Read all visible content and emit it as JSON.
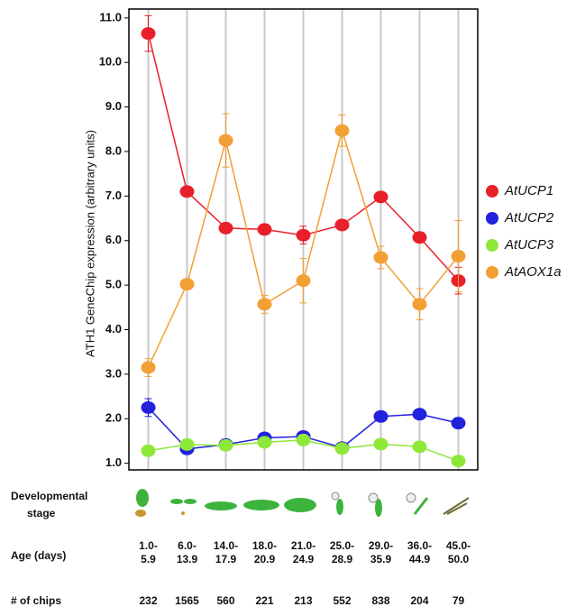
{
  "chart_data": {
    "type": "line",
    "y_label": "ATH1 GeneChip expression (arbitrary units)",
    "categories": [
      [
        "1.0-",
        "5.9"
      ],
      [
        "6.0-",
        "13.9"
      ],
      [
        "14.0-",
        "17.9"
      ],
      [
        "18.0-",
        "20.9"
      ],
      [
        "21.0-",
        "24.9"
      ],
      [
        "25.0-",
        "28.9"
      ],
      [
        "29.0-",
        "35.9"
      ],
      [
        "36.0-",
        "44.9"
      ],
      [
        "45.0-",
        "50.0"
      ]
    ],
    "series": [
      {
        "name": "AtUCP1",
        "color": "#e8202a",
        "values": [
          10.65,
          7.1,
          6.28,
          6.25,
          6.12,
          6.35,
          6.98,
          6.07,
          5.1
        ],
        "errors": [
          0.4,
          0.1,
          0.1,
          0.1,
          0.2,
          0.1,
          0.1,
          0.1,
          0.3
        ]
      },
      {
        "name": "AtUCP2",
        "color": "#2222dd",
        "values": [
          2.25,
          1.32,
          1.42,
          1.57,
          1.6,
          1.35,
          2.05,
          2.1,
          1.9
        ],
        "errors": [
          0.2,
          0.1,
          0.1,
          0.1,
          0.1,
          0.05,
          0.1,
          0.1,
          0.1
        ]
      },
      {
        "name": "AtUCP3",
        "color": "#8ee83a",
        "values": [
          1.28,
          1.42,
          1.4,
          1.47,
          1.52,
          1.33,
          1.43,
          1.37,
          1.05
        ],
        "errors": [
          0.05,
          0.05,
          0.05,
          0.05,
          0.05,
          0.05,
          0.05,
          0.05,
          0.05
        ]
      },
      {
        "name": "AtAOX1a",
        "color": "#f2a033",
        "values": [
          3.15,
          5.02,
          8.25,
          4.57,
          5.1,
          8.47,
          5.62,
          4.57,
          5.65
        ],
        "errors": [
          0.2,
          0.1,
          0.6,
          0.2,
          0.5,
          0.35,
          0.25,
          0.35,
          0.8
        ]
      }
    ],
    "ylim": [
      0.85,
      11.2
    ],
    "yticks": [
      {
        "value": 1,
        "label": "1.0"
      },
      {
        "value": 2,
        "label": "2.0"
      },
      {
        "value": 3,
        "label": "3.0"
      },
      {
        "value": 4,
        "label": "4.0"
      },
      {
        "value": 5,
        "label": "5.0"
      },
      {
        "value": 6,
        "label": "6.0"
      },
      {
        "value": 7,
        "label": "7.0"
      },
      {
        "value": 8,
        "label": "8.0"
      },
      {
        "value": 9,
        "label": "9.0"
      },
      {
        "value": 10,
        "label": "10.0"
      },
      {
        "value": 11,
        "label": "11.0"
      }
    ],
    "stage_label": [
      "Developmental",
      "stage"
    ],
    "age_label": "Age (days)",
    "chips_label": "# of chips",
    "chips": [
      232,
      1565,
      560,
      221,
      213,
      552,
      838,
      204,
      79
    ]
  }
}
